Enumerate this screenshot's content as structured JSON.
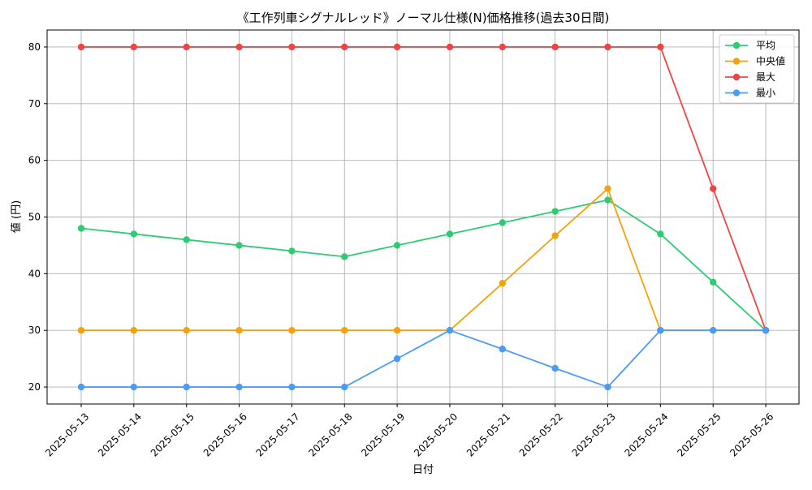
{
  "chart_data": {
    "type": "line",
    "title": "《工作列車シグナルレッド》ノーマル仕様(N)価格推移(過去30日間)",
    "xlabel": "日付",
    "ylabel": "値 (円)",
    "categories": [
      "2025-05-13",
      "2025-05-14",
      "2025-05-15",
      "2025-05-16",
      "2025-05-17",
      "2025-05-18",
      "2025-05-19",
      "2025-05-20",
      "2025-05-21",
      "2025-05-22",
      "2025-05-23",
      "2025-05-24",
      "2025-05-25",
      "2025-05-26"
    ],
    "yticks": [
      20,
      30,
      40,
      50,
      60,
      70,
      80
    ],
    "ylim": [
      17,
      83
    ],
    "grid": true,
    "legend_position": "top-right",
    "series": [
      {
        "name": "平均",
        "color": "#2ecc71",
        "values": [
          48,
          47,
          46,
          45,
          44,
          43,
          45,
          47,
          49,
          51,
          53,
          47,
          38.5,
          30
        ]
      },
      {
        "name": "中央値",
        "color": "#f5a10a",
        "values": [
          30,
          30,
          30,
          30,
          30,
          30,
          30,
          30,
          38.3,
          46.7,
          55,
          30,
          30,
          30
        ]
      },
      {
        "name": "最大",
        "color": "#ef4444",
        "values": [
          80,
          80,
          80,
          80,
          80,
          80,
          80,
          80,
          80,
          80,
          80,
          80,
          55,
          30
        ]
      },
      {
        "name": "最小",
        "color": "#4b9bf5",
        "values": [
          20,
          20,
          20,
          20,
          20,
          20,
          25,
          30,
          26.7,
          23.3,
          20,
          30,
          30,
          30
        ]
      }
    ]
  }
}
